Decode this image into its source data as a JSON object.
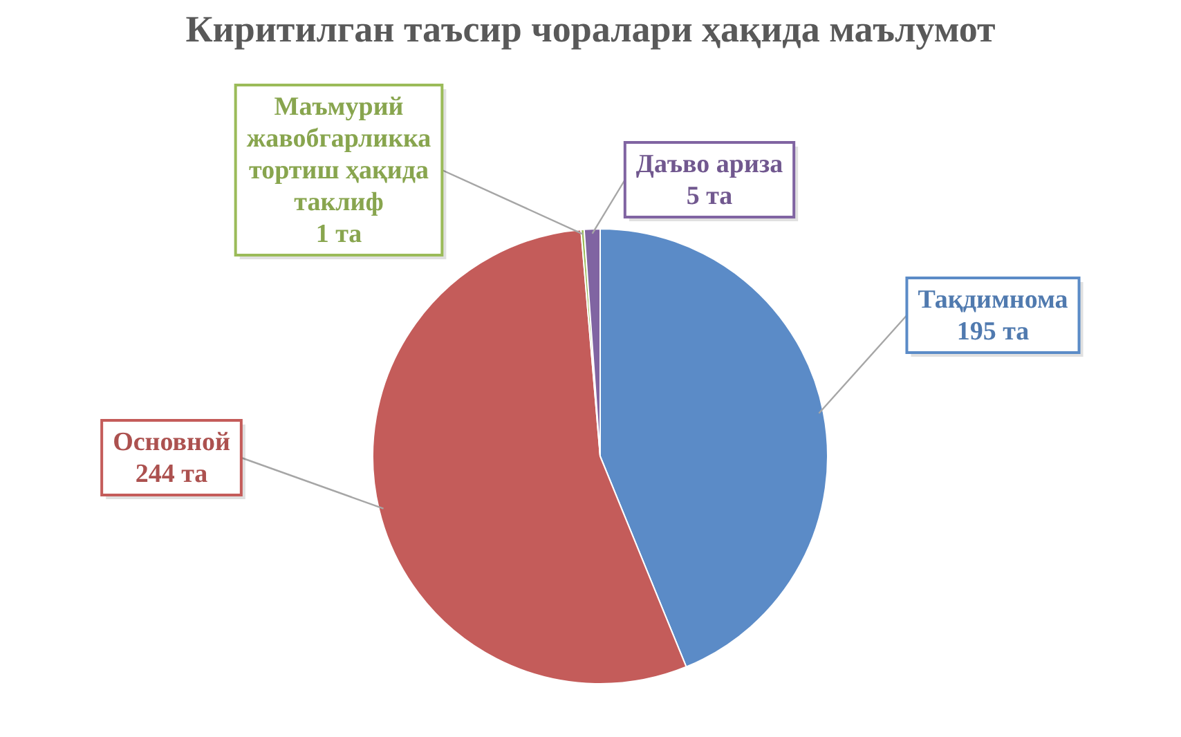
{
  "chart_data": {
    "type": "pie",
    "title": "Киритилган таъсир чоралари ҳақида маълумот",
    "categories": [
      "Тақдимнома",
      "Основной",
      "Маъмурий жавобгарликка тортиш ҳақида таклиф",
      "Даъво ариза"
    ],
    "values": [
      195,
      244,
      1,
      5
    ],
    "colors": [
      "#5b8bc7",
      "#c45c5a",
      "#9bbb59",
      "#8064a2"
    ],
    "value_labels": [
      "195 та",
      "244 та",
      "1 та",
      "5 та"
    ]
  }
}
